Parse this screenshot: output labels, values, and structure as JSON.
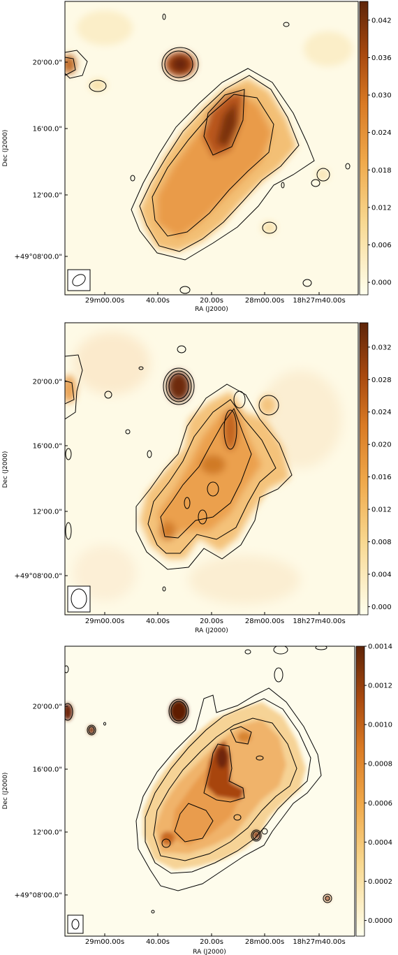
{
  "chart_data": [
    {
      "type": "heatmap",
      "xlabel": "RA (J2000)",
      "ylabel": "Dec (J2000)",
      "xticks": [
        "29m00.00s",
        "40.00s",
        "20.00s",
        "28m00.00s",
        "18h27m40.00s"
      ],
      "yticks": [
        "20'00.0\"",
        "16'00.0\"",
        "12'00.0\"",
        "+49°08'00.0\""
      ],
      "colorbar_ticks": [
        "0.042",
        "0.036",
        "0.030",
        "0.024",
        "0.018",
        "0.012",
        "0.006",
        "0.000"
      ],
      "colorbar_range": [
        -0.002,
        0.045
      ],
      "colormap": [
        "#ffffee",
        "#f6c36a",
        "#e48e2e",
        "#c25e15",
        "#6b2a0a"
      ],
      "beam": "ellipse-tilted",
      "contours": true,
      "grid": false
    },
    {
      "type": "heatmap",
      "xlabel": "RA (J2000)",
      "ylabel": "Dec (J2000)",
      "xticks": [
        "29m00.00s",
        "40.00s",
        "20.00s",
        "28m00.00s",
        "18h27m40.00s"
      ],
      "yticks": [
        "20'00.0\"",
        "16'00.0\"",
        "12'00.0\"",
        "+49°08'00.0\""
      ],
      "colorbar_ticks": [
        "0.032",
        "0.028",
        "0.024",
        "0.020",
        "0.016",
        "0.012",
        "0.008",
        "0.004",
        "0.000"
      ],
      "colorbar_range": [
        -0.001,
        0.035
      ],
      "colormap": [
        "#ffffee",
        "#f6c36a",
        "#e48e2e",
        "#c25e15",
        "#6b2a0a"
      ],
      "beam": "ellipse-vertical",
      "contours": true,
      "grid": false
    },
    {
      "type": "heatmap",
      "xlabel": "RA (J2000)",
      "ylabel": "Dec (J2000)",
      "xticks": [
        "29m00.00s",
        "40.00s",
        "20.00s",
        "28m00.00s",
        "18h27m40.00s"
      ],
      "yticks": [
        "20'00.0\"",
        "16'00.0\"",
        "12'00.0\"",
        "+49°08'00.0\""
      ],
      "colorbar_ticks": [
        "0.0014",
        "0.0012",
        "0.0010",
        "0.0008",
        "0.0006",
        "0.0004",
        "0.0002",
        "0.0000"
      ],
      "colorbar_range": [
        -8e-05,
        0.0014
      ],
      "colormap": [
        "#ffffee",
        "#f6c36a",
        "#e48e2e",
        "#c25e15",
        "#6b2a0a"
      ],
      "beam": "ellipse-small",
      "contours": true,
      "grid": false
    }
  ]
}
